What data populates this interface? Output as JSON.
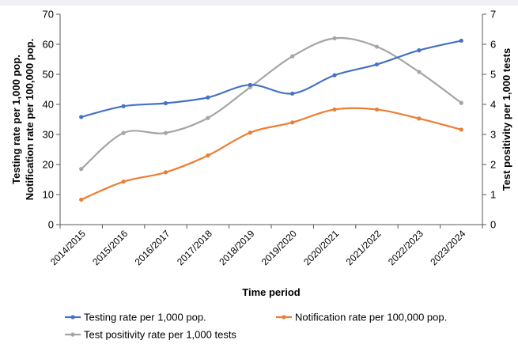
{
  "chart_data": {
    "type": "line",
    "xlabel": "Time period",
    "ylabel_left": [
      "Testing rate per 1,000 pop.",
      "Notification rate per 100,000 pop."
    ],
    "ylabel_right": "Test positivity per 1,000 tests",
    "categories": [
      "2014/2015",
      "2015/2016",
      "2016/2017",
      "2017/2018",
      "2018/2019",
      "2019/2020",
      "2020/2021",
      "2021/2022",
      "2022/2023",
      "2023/2024"
    ],
    "y_left": {
      "min": 0,
      "max": 70,
      "ticks": [
        "0",
        "10",
        "20",
        "30",
        "40",
        "50",
        "60",
        "70"
      ]
    },
    "y_right": {
      "min": 0,
      "max": 7,
      "ticks": [
        "0",
        "1",
        "2",
        "3",
        "4",
        "5",
        "6",
        "7"
      ]
    },
    "grid": false,
    "legend_position": "bottom",
    "series": [
      {
        "name": "Testing rate per 1,000 pop.",
        "axis": "left",
        "color": "#4472C4",
        "values": [
          35.8,
          39.4,
          40.4,
          42.3,
          46.5,
          43.6,
          49.7,
          53.3,
          58.0,
          61.2
        ]
      },
      {
        "name": "Notification rate per 100,000 pop.",
        "axis": "left",
        "color": "#ED7D31",
        "values": [
          8.3,
          14.3,
          17.4,
          23.0,
          30.6,
          34.0,
          38.3,
          38.3,
          35.3,
          31.6
        ]
      },
      {
        "name": "Test positivity rate per 1,000 tests",
        "axis": "right",
        "color": "#A5A5A5",
        "values": [
          1.85,
          3.05,
          3.05,
          3.55,
          4.57,
          5.6,
          6.2,
          5.92,
          5.08,
          4.05
        ]
      }
    ]
  }
}
